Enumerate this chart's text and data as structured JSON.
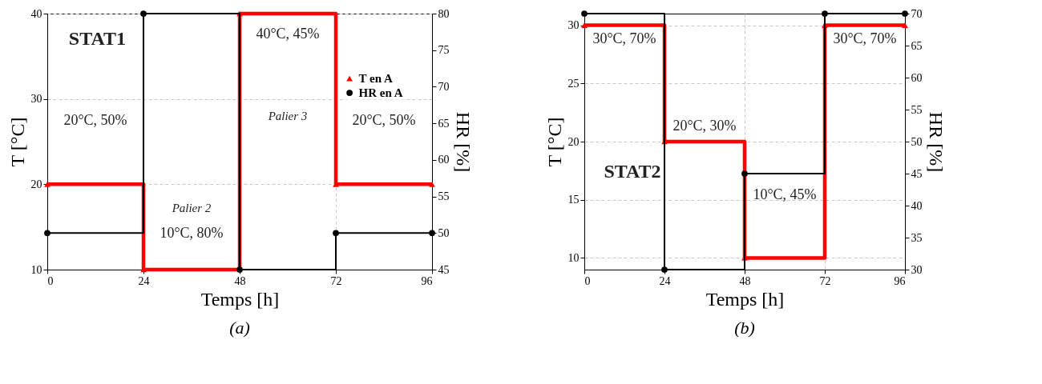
{
  "chart_data": [
    {
      "type": "step",
      "title": "(a)",
      "xlabel": "Temps [h]",
      "ylabel": "T [°C]",
      "y2label": "HR [%]",
      "x": [
        0,
        24,
        48,
        72,
        96
      ],
      "xlim": [
        0,
        96
      ],
      "xticks": [
        0,
        24,
        48,
        72,
        96
      ],
      "ylim": [
        10,
        40
      ],
      "yticks": [
        10,
        20,
        30,
        40
      ],
      "y2lim": [
        45,
        80
      ],
      "y2ticks": [
        45,
        50,
        55,
        60,
        65,
        70,
        75,
        80
      ],
      "grid": true,
      "legend": "top right",
      "series": [
        {
          "name": "T en A",
          "color": "#ff0000",
          "marker": "triangle",
          "values": [
            20,
            10,
            40,
            20,
            20
          ]
        },
        {
          "name": "HR en A",
          "color": "#000000",
          "marker": "circle",
          "axis": "y2",
          "values": [
            50,
            80,
            45,
            50,
            50
          ]
        }
      ],
      "annotations": [
        "STAT1",
        "20°C, 50%",
        "Palier 2",
        "10°C, 80%",
        "40°C, 45%",
        "Palier 3",
        "20°C, 50%"
      ]
    },
    {
      "type": "step",
      "title": "(b)",
      "xlabel": "Temps [h]",
      "ylabel": "T [°C]",
      "y2label": "HR [%]",
      "x": [
        0,
        24,
        48,
        72,
        96
      ],
      "xlim": [
        0,
        96
      ],
      "xticks": [
        0,
        24,
        48,
        72,
        96
      ],
      "ylim": [
        9,
        31
      ],
      "yticks": [
        10,
        15,
        20,
        25,
        30
      ],
      "y2lim": [
        30,
        70
      ],
      "y2ticks": [
        30,
        35,
        40,
        45,
        50,
        55,
        60,
        65,
        70
      ],
      "grid": true,
      "legend": "top",
      "series": [
        {
          "name": "T en A",
          "color": "#ff0000",
          "marker": "triangle",
          "values": [
            30,
            20,
            10,
            30,
            30
          ]
        },
        {
          "name": "HR en A",
          "color": "#000000",
          "marker": "circle",
          "axis": "y2",
          "values": [
            70,
            30,
            45,
            70,
            70
          ]
        }
      ],
      "annotations": [
        "30°C, 70%",
        "20°C, 30%",
        "STAT2",
        "10°C, 45%",
        "30°C, 70%"
      ]
    }
  ]
}
